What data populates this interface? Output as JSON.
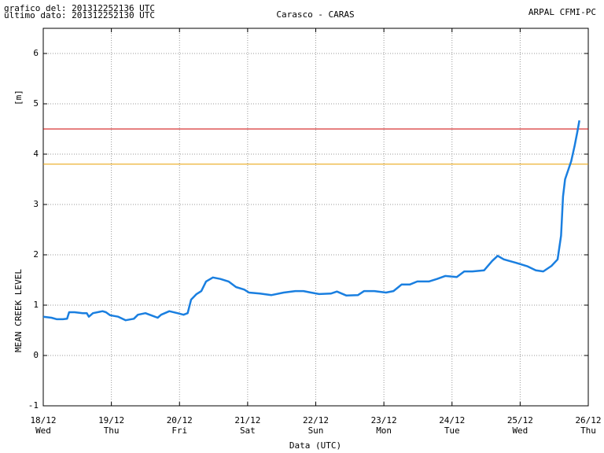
{
  "chart_data": {
    "type": "line",
    "header_lines": [
      "grafico del: 201312252136 UTC",
      "ultimo dato: 201312252130 UTC"
    ],
    "title": "Carasco - CARAS",
    "source": "ARPAL CFMI-PC",
    "y_unit": "[m]",
    "y_label": "MEAN CREEK LEVEL",
    "x_label": "Data (UTC)",
    "xlim": [
      0,
      8
    ],
    "xticks": [
      {
        "value": 0,
        "label": "18/12",
        "day": "Wed"
      },
      {
        "value": 1,
        "label": "19/12",
        "day": "Thu"
      },
      {
        "value": 2,
        "label": "20/12",
        "day": "Fri"
      },
      {
        "value": 3,
        "label": "21/12",
        "day": "Sat"
      },
      {
        "value": 4,
        "label": "22/12",
        "day": "Sun"
      },
      {
        "value": 5,
        "label": "23/12",
        "day": "Mon"
      },
      {
        "value": 6,
        "label": "24/12",
        "day": "Tue"
      },
      {
        "value": 7,
        "label": "25/12",
        "day": "Wed"
      },
      {
        "value": 8,
        "label": "26/12",
        "day": "Thu"
      }
    ],
    "ylim": [
      -1,
      6.5
    ],
    "yticks": [
      -1,
      0,
      1,
      2,
      3,
      4,
      5,
      6
    ],
    "grid": true,
    "thresholds": [
      {
        "value": 4.5,
        "color": "#cc0000"
      },
      {
        "value": 3.8,
        "color": "#e8a000"
      }
    ],
    "series": [
      {
        "color": "#1a7fe0",
        "x": [
          0,
          0.12,
          0.2,
          0.29,
          0.35,
          0.38,
          0.46,
          0.58,
          0.64,
          0.67,
          0.73,
          0.87,
          0.92,
          0.98,
          1.1,
          1.21,
          1.33,
          1.39,
          1.5,
          1.62,
          1.68,
          1.73,
          1.85,
          1.97,
          2.06,
          2.12,
          2.17,
          2.25,
          2.32,
          2.39,
          2.49,
          2.6,
          2.72,
          2.83,
          2.95,
          3.02,
          3.18,
          3.35,
          3.53,
          3.7,
          3.82,
          3.93,
          4.05,
          4.22,
          4.31,
          4.45,
          4.62,
          4.71,
          4.86,
          5.03,
          5.14,
          5.26,
          5.38,
          5.49,
          5.66,
          5.78,
          5.9,
          6.07,
          6.18,
          6.3,
          6.47,
          6.59,
          6.67,
          6.76,
          6.94,
          7.11,
          7.23,
          7.34,
          7.46,
          7.55,
          7.6,
          7.63,
          7.66,
          7.75,
          7.8,
          7.84,
          7.87
        ],
        "values": [
          0.77,
          0.75,
          0.72,
          0.72,
          0.73,
          0.86,
          0.86,
          0.84,
          0.84,
          0.77,
          0.84,
          0.88,
          0.86,
          0.8,
          0.77,
          0.7,
          0.73,
          0.81,
          0.84,
          0.78,
          0.75,
          0.81,
          0.88,
          0.84,
          0.81,
          0.84,
          1.11,
          1.22,
          1.28,
          1.47,
          1.55,
          1.52,
          1.47,
          1.36,
          1.31,
          1.25,
          1.23,
          1.2,
          1.25,
          1.28,
          1.28,
          1.25,
          1.22,
          1.23,
          1.27,
          1.19,
          1.2,
          1.28,
          1.28,
          1.25,
          1.28,
          1.41,
          1.41,
          1.47,
          1.47,
          1.52,
          1.58,
          1.56,
          1.67,
          1.67,
          1.69,
          1.88,
          1.98,
          1.91,
          1.84,
          1.77,
          1.69,
          1.67,
          1.78,
          1.91,
          2.38,
          3.16,
          3.5,
          3.86,
          4.17,
          4.44,
          4.67
        ]
      }
    ]
  }
}
